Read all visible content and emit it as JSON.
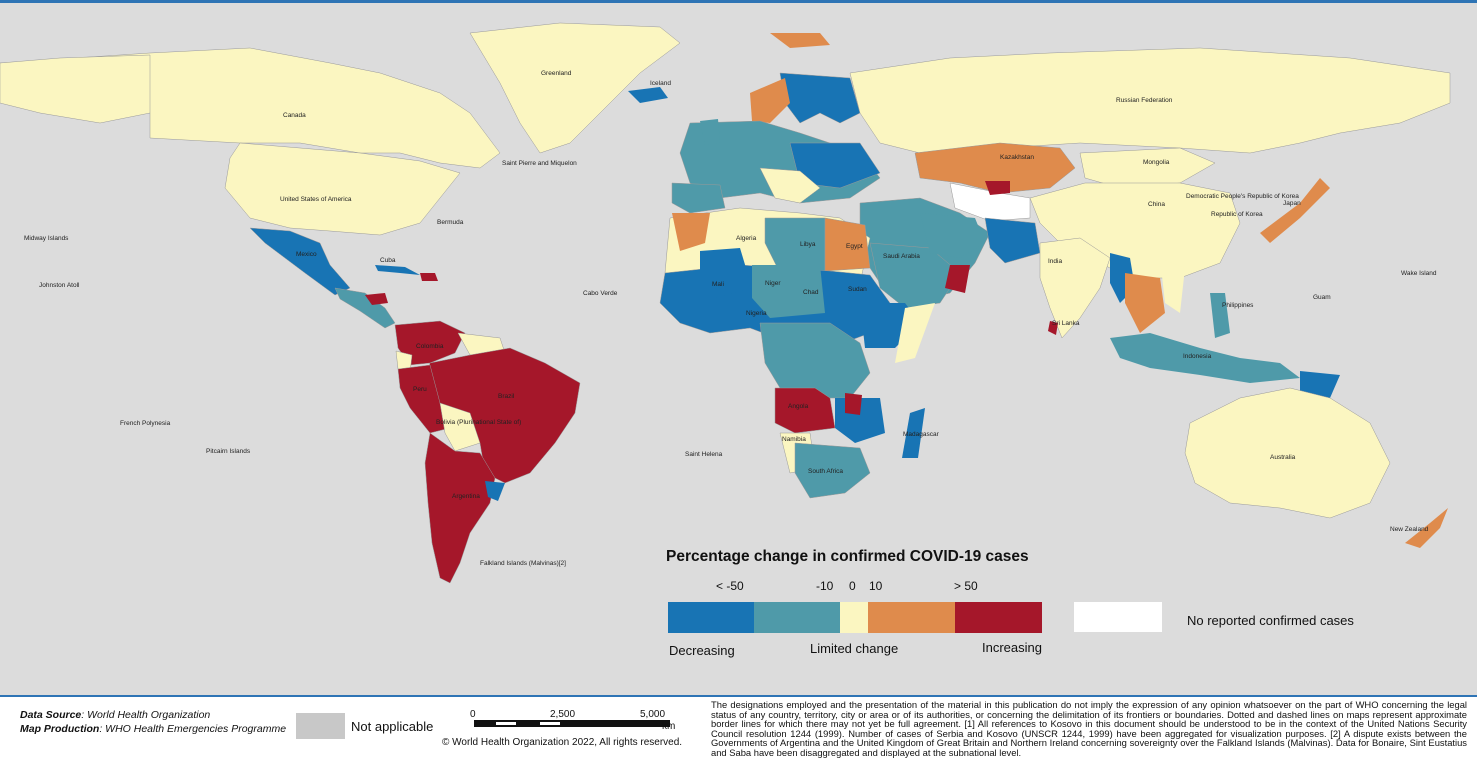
{
  "colors": {
    "decreasing_strong": "#1874b4",
    "decreasing": "#4f9aa9",
    "limited_change": "#fbf6c1",
    "increasing": "#df8b4c",
    "increasing_strong": "#a5172a",
    "no_cases": "#ffffff",
    "not_applicable": "#c8c8c8",
    "ocean": "#dcdcdc",
    "rule": "#2e74b5"
  },
  "legend": {
    "title": "Percentage change in confirmed COVID-19 cases",
    "ticks": [
      "< -50",
      "-10",
      "0",
      "10",
      "> 50"
    ],
    "decreasing_label": "Decreasing",
    "limited_label": "Limited change",
    "increasing_label": "Increasing",
    "no_cases_label": "No reported confirmed cases"
  },
  "country_labels": {
    "greenland": "Greenland",
    "iceland": "Iceland",
    "canada": "Canada",
    "usa": "United States of America",
    "russia": "Russian Federation",
    "kazakhstan": "Kazakhstan",
    "mongolia": "Mongolia",
    "china": "China",
    "dprk": "Democratic People's Republic of Korea",
    "korea": "Republic of Korea",
    "japan": "Japan",
    "mexico": "Mexico",
    "cuba": "Cuba",
    "brazil": "Brazil",
    "peru": "Peru",
    "bolivia": "Bolivia (Plurinational State of)",
    "argentina": "Argentina",
    "colombia": "Colombia",
    "algeria": "Algeria",
    "libya": "Libya",
    "egypt": "Egypt",
    "sudan": "Sudan",
    "mali": "Mali",
    "niger": "Niger",
    "chad": "Chad",
    "nigeria": "Nigeria",
    "angola": "Angola",
    "namibia": "Namibia",
    "south_africa": "South Africa",
    "india": "India",
    "saudi_arabia": "Saudi Arabia",
    "australia": "Australia",
    "new_zealand": "New Zealand",
    "indonesia": "Indonesia",
    "madagascar": "Madagascar",
    "falklands": "Falkland Islands (Malvinas)[2]",
    "saint_pierre": "Saint Pierre and Miquelon",
    "bermuda": "Bermuda",
    "midway": "Midway Islands",
    "johnston": "Johnston Atoll",
    "french_polynesia": "French Polynesia",
    "pitcairn": "Pitcairn Islands",
    "saint_helena": "Saint Helena",
    "cabo_verde": "Cabo Verde",
    "sri_lanka": "Sri Lanka",
    "philippines": "Philippines",
    "wake": "Wake Island",
    "guam": "Guam"
  },
  "scalebar": {
    "labels": [
      "0",
      "2,500",
      "5,000"
    ],
    "unit": "km"
  },
  "footer": {
    "data_source_key": "Data Source",
    "data_source_value": ": World Health Organization",
    "map_production_key": "Map Production",
    "map_production_value": ": WHO Health Emergencies Programme",
    "not_applicable": "Not applicable",
    "copyright": "© World Health Organization  2022,  All rights reserved.",
    "disclaimer": "The designations employed and the presentation of the material in this publication do not imply the expression of any opinion whatsoever on the part of WHO concerning the legal status of any country, territory, city or area or of its authorities, or concerning the delimitation of its frontiers or boundaries. Dotted and dashed lines on maps represent approximate border lines for which there may not yet be full agreement. [1] All references to Kosovo in this document should be understood to be in the context of the United Nations Security Council resolution 1244 (1999). Number of cases of Serbia and Kosovo (UNSCR 1244, 1999) have been aggregated for visualization purposes. [2] A dispute exists between the Governments of Argentina and the United Kingdom of Great Britain and Northern Ireland concerning sovereignty over the Falkland Islands (Malvinas). Data for Bonaire, Sint Eustatius and Saba have been disaggregated and displayed at the subnational level."
  }
}
